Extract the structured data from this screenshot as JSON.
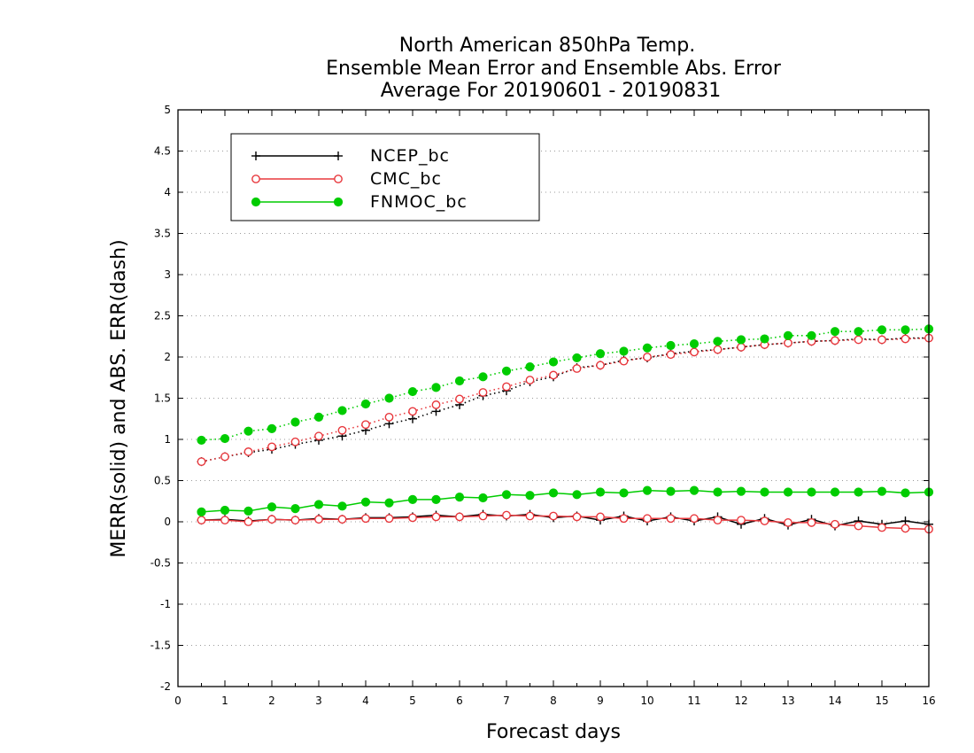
{
  "chart_data": {
    "type": "line",
    "title_lines": [
      "North American 850hPa Temp.",
      "Ensemble Mean Error and Ensemble Abs. Error",
      "Average For 20190601 - 20190831"
    ],
    "xlabel": "Forecast days",
    "ylabel": "MERR(solid) and ABS. ERR(dash)",
    "xlim": [
      0,
      16
    ],
    "ylim": [
      -2,
      5
    ],
    "xticks": [
      0,
      1,
      2,
      3,
      4,
      5,
      6,
      7,
      8,
      9,
      10,
      11,
      12,
      13,
      14,
      15,
      16
    ],
    "yticks": [
      -2,
      -1.5,
      -1,
      -0.5,
      0,
      0.5,
      1,
      1.5,
      2,
      2.5,
      3,
      3.5,
      4,
      4.5,
      5
    ],
    "ytick_labels": [
      "-2",
      "-1.5",
      "-1",
      "-0.5",
      "0",
      "0.5",
      "1",
      "1.5",
      "2",
      "2.5",
      "3",
      "3.5",
      "4",
      "4.5",
      "5"
    ],
    "grid": true,
    "legend_position": "top-left",
    "x": [
      0.5,
      1,
      1.5,
      2,
      2.5,
      3,
      3.5,
      4,
      4.5,
      5,
      5.5,
      6,
      6.5,
      7,
      7.5,
      8,
      8.5,
      9,
      9.5,
      10,
      10.5,
      11,
      11.5,
      12,
      12.5,
      13,
      13.5,
      14,
      14.5,
      15,
      15.5,
      16
    ],
    "series": [
      {
        "name": "NCEP_bc",
        "color": "#000000",
        "marker": "plus",
        "merr": [
          0.02,
          0.03,
          0.01,
          0.03,
          0.02,
          0.04,
          0.03,
          0.05,
          0.05,
          0.06,
          0.08,
          0.06,
          0.09,
          0.07,
          0.09,
          0.05,
          0.07,
          0.02,
          0.07,
          0.01,
          0.06,
          0.01,
          0.06,
          -0.03,
          0.04,
          -0.04,
          0.03,
          -0.05,
          0.01,
          -0.03,
          0.01,
          -0.03
        ],
        "abs_err": [
          0.73,
          0.79,
          0.84,
          0.88,
          0.94,
          0.99,
          1.04,
          1.11,
          1.19,
          1.25,
          1.34,
          1.42,
          1.53,
          1.59,
          1.7,
          1.76,
          1.87,
          1.9,
          1.96,
          1.99,
          2.04,
          2.07,
          2.09,
          2.12,
          2.15,
          2.17,
          2.19,
          2.2,
          2.22,
          2.21,
          2.23,
          2.23
        ]
      },
      {
        "name": "CMC_bc",
        "color": "#e8383d",
        "marker": "open-circle",
        "merr": [
          0.02,
          0.02,
          0.0,
          0.03,
          0.02,
          0.03,
          0.03,
          0.04,
          0.04,
          0.05,
          0.06,
          0.06,
          0.07,
          0.08,
          0.07,
          0.07,
          0.06,
          0.06,
          0.04,
          0.04,
          0.04,
          0.04,
          0.02,
          0.02,
          0.01,
          -0.01,
          -0.01,
          -0.03,
          -0.05,
          -0.07,
          -0.08,
          -0.09
        ],
        "abs_err": [
          0.73,
          0.79,
          0.85,
          0.91,
          0.97,
          1.04,
          1.11,
          1.18,
          1.27,
          1.34,
          1.42,
          1.49,
          1.57,
          1.64,
          1.72,
          1.78,
          1.86,
          1.9,
          1.95,
          2.0,
          2.03,
          2.06,
          2.09,
          2.12,
          2.15,
          2.17,
          2.19,
          2.2,
          2.21,
          2.21,
          2.22,
          2.23
        ]
      },
      {
        "name": "FNMOC_bc",
        "color": "#00cc00",
        "marker": "filled-circle",
        "merr": [
          0.12,
          0.14,
          0.13,
          0.18,
          0.16,
          0.21,
          0.19,
          0.24,
          0.23,
          0.27,
          0.27,
          0.3,
          0.29,
          0.33,
          0.32,
          0.35,
          0.33,
          0.36,
          0.35,
          0.38,
          0.37,
          0.38,
          0.36,
          0.37,
          0.36,
          0.36,
          0.36,
          0.36,
          0.36,
          0.37,
          0.35,
          0.36
        ],
        "abs_err": [
          0.99,
          1.01,
          1.1,
          1.13,
          1.21,
          1.27,
          1.35,
          1.43,
          1.5,
          1.58,
          1.63,
          1.71,
          1.76,
          1.83,
          1.88,
          1.94,
          1.99,
          2.04,
          2.07,
          2.11,
          2.14,
          2.16,
          2.19,
          2.21,
          2.22,
          2.26,
          2.26,
          2.31,
          2.31,
          2.33,
          2.33,
          2.34
        ]
      }
    ]
  }
}
